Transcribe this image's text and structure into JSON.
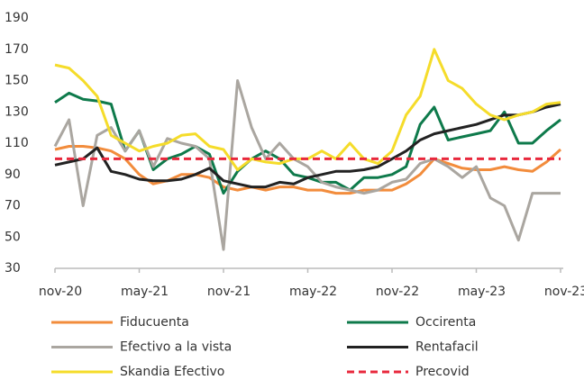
{
  "chart_data": {
    "type": "line",
    "categories": [
      "nov-20",
      null,
      null,
      null,
      null,
      null,
      "may-21",
      null,
      null,
      null,
      null,
      null,
      "nov-21",
      null,
      null,
      null,
      null,
      null,
      "may-22",
      null,
      null,
      null,
      null,
      null,
      "nov-22",
      null,
      null,
      null,
      null,
      null,
      "may-23",
      null,
      null,
      null,
      null,
      null,
      "nov-23"
    ],
    "ylim": [
      30,
      190
    ],
    "yticks": [
      30,
      50,
      70,
      90,
      110,
      130,
      150,
      170,
      190
    ],
    "grid": false,
    "series": [
      {
        "name": "Fiducuenta",
        "color": "#f28c3c",
        "values": [
          106,
          108,
          108,
          107,
          105,
          100,
          90,
          84,
          86,
          90,
          90,
          88,
          82,
          80,
          82,
          80,
          82,
          82,
          80,
          80,
          78,
          78,
          80,
          80,
          80,
          84,
          90,
          100,
          97,
          94,
          93,
          93,
          95,
          93,
          92,
          98,
          106
        ]
      },
      {
        "name": "Occirenta",
        "color": "#0e7a4b",
        "values": [
          136,
          142,
          138,
          137,
          135,
          105,
          118,
          93,
          100,
          103,
          108,
          103,
          78,
          92,
          100,
          105,
          100,
          90,
          88,
          85,
          85,
          80,
          88,
          88,
          90,
          95,
          122,
          133,
          112,
          114,
          116,
          118,
          130,
          110,
          110,
          118,
          125
        ]
      },
      {
        "name": "Efectivo a la vista",
        "color": "#aaa6a0",
        "values": [
          108,
          125,
          70,
          115,
          120,
          105,
          118,
          95,
          113,
          110,
          108,
          100,
          42,
          150,
          120,
          100,
          110,
          100,
          95,
          85,
          82,
          80,
          78,
          80,
          85,
          87,
          97,
          100,
          95,
          88,
          95,
          75,
          70,
          48,
          78,
          78,
          78
        ]
      },
      {
        "name": "Rentafacil",
        "color": "#222222",
        "values": [
          96,
          98,
          100,
          107,
          92,
          90,
          87,
          86,
          86,
          87,
          90,
          94,
          86,
          84,
          82,
          82,
          85,
          84,
          88,
          90,
          92,
          92,
          93,
          95,
          100,
          105,
          112,
          116,
          118,
          120,
          122,
          125,
          128,
          128,
          130,
          133,
          135
        ]
      },
      {
        "name": "Skandia Efectivo",
        "color": "#f5dc2a",
        "values": [
          160,
          158,
          150,
          140,
          115,
          110,
          105,
          108,
          110,
          115,
          116,
          108,
          106,
          93,
          100,
          98,
          97,
          100,
          100,
          105,
          100,
          110,
          100,
          97,
          105,
          128,
          140,
          170,
          150,
          145,
          135,
          128,
          125,
          128,
          130,
          135,
          136
        ]
      },
      {
        "name": "Precovid",
        "color": "#e8283c",
        "dashed": true,
        "values": [
          100,
          100,
          100,
          100,
          100,
          100,
          100,
          100,
          100,
          100,
          100,
          100,
          100,
          100,
          100,
          100,
          100,
          100,
          100,
          100,
          100,
          100,
          100,
          100,
          100,
          100,
          100,
          100,
          100,
          100,
          100,
          100,
          100,
          100,
          100,
          100,
          100
        ]
      }
    ]
  }
}
